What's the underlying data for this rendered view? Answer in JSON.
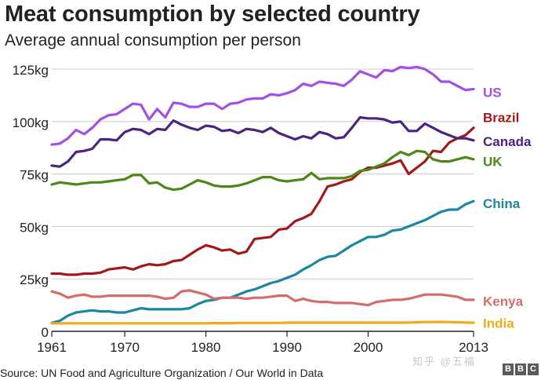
{
  "header": {
    "title": "Meat consumption by selected country",
    "subtitle": "Average annual consumption per person"
  },
  "footer": {
    "source": "Source: UN Food and Agriculture Organization / Our World in Data",
    "watermark": "知乎 @五福",
    "bbc_letters": [
      "B",
      "B",
      "C"
    ]
  },
  "chart_data": {
    "type": "line",
    "title": "Meat consumption by selected country",
    "subtitle": "Average annual consumption per person",
    "xlabel": "",
    "ylabel": "",
    "xlim": [
      1961,
      2013
    ],
    "ylim": [
      0,
      125
    ],
    "x_ticks": [
      1961,
      1970,
      1980,
      1990,
      2000,
      2013
    ],
    "y_ticks": [
      0,
      25,
      50,
      75,
      100,
      125
    ],
    "y_tick_labels": [
      "0",
      "25kg",
      "50kg",
      "75kg",
      "100kg",
      "125kg"
    ],
    "grid": "horizontal",
    "legend": "direct labels at right",
    "x": [
      1961,
      1962,
      1963,
      1964,
      1965,
      1966,
      1967,
      1968,
      1969,
      1970,
      1971,
      1972,
      1973,
      1974,
      1975,
      1976,
      1977,
      1978,
      1979,
      1980,
      1981,
      1982,
      1983,
      1984,
      1985,
      1986,
      1987,
      1988,
      1989,
      1990,
      1991,
      1992,
      1993,
      1994,
      1995,
      1996,
      1997,
      1998,
      1999,
      2000,
      2001,
      2002,
      2003,
      2004,
      2005,
      2006,
      2007,
      2008,
      2009,
      2010,
      2011,
      2012,
      2013
    ],
    "series": [
      {
        "name": "US",
        "color": "#a24fe6",
        "values": [
          89,
          89.5,
          92,
          96,
          94,
          97,
          101,
          103,
          103.5,
          106,
          108.5,
          108,
          101,
          106,
          102,
          109,
          108.5,
          107,
          107,
          108.5,
          108.5,
          106,
          108.5,
          109,
          110.5,
          111,
          111,
          113,
          112.5,
          113.5,
          115,
          118,
          117,
          119,
          118.5,
          118,
          117,
          120,
          124,
          122.5,
          121,
          124.5,
          124,
          126,
          125.5,
          126,
          125,
          122.5,
          119,
          119,
          117,
          115,
          115.5
        ]
      },
      {
        "name": "Brazil",
        "color": "#a51818",
        "values": [
          27.5,
          27.5,
          27,
          27,
          27.5,
          27.5,
          28,
          29.5,
          30,
          30.5,
          29.5,
          31,
          32,
          31.5,
          32,
          33.5,
          34,
          36.5,
          39,
          41,
          40,
          38.5,
          39,
          37,
          38,
          44,
          44.5,
          45,
          48.5,
          49,
          52.5,
          54,
          56,
          62,
          69,
          70,
          71.5,
          72.5,
          76,
          78,
          78,
          79,
          80,
          81.5,
          75,
          78,
          81,
          86,
          85.5,
          90,
          92,
          93.5,
          97
        ]
      },
      {
        "name": "Canada",
        "color": "#4a2480",
        "values": [
          79,
          78.5,
          81,
          85.5,
          86,
          87,
          91.5,
          91.5,
          91,
          95,
          96.5,
          96,
          94,
          96.5,
          96,
          100.5,
          98.5,
          97,
          96,
          98,
          97.5,
          95.5,
          96,
          94.5,
          96.5,
          96,
          95,
          97,
          94.5,
          93,
          91.5,
          93,
          92,
          95,
          94,
          92,
          92.5,
          97,
          102,
          101.5,
          101.5,
          101,
          99.5,
          100,
          95.5,
          95.5,
          99,
          97,
          95,
          93.5,
          92,
          92,
          91
        ]
      },
      {
        "name": "UK",
        "color": "#4e8717",
        "values": [
          70,
          71,
          70.5,
          70,
          70.5,
          71,
          71,
          71.5,
          72,
          72.5,
          74.5,
          74.5,
          70.5,
          71,
          68.5,
          67.5,
          68,
          70,
          72,
          71,
          69.5,
          69,
          69,
          69.5,
          70.5,
          72,
          73.5,
          73.5,
          72,
          71.5,
          72,
          72.5,
          75.5,
          72.5,
          73,
          73,
          73,
          74,
          76.5,
          77,
          78.5,
          80,
          83,
          85.5,
          84,
          86,
          85.5,
          82,
          81,
          81,
          82,
          83,
          82
        ]
      },
      {
        "name": "China",
        "color": "#1d86a3",
        "values": [
          4,
          5,
          7.5,
          9,
          9.5,
          10,
          9.5,
          9.5,
          9,
          9,
          10,
          11,
          10.5,
          10.5,
          10.5,
          10.5,
          10.5,
          11,
          13,
          14.5,
          15,
          16,
          16,
          17.5,
          19,
          20,
          21.5,
          23,
          24,
          25.5,
          27,
          29.5,
          31.5,
          34,
          35.5,
          36,
          38.5,
          41,
          43,
          45,
          45,
          46,
          48,
          48.5,
          50,
          51.5,
          53,
          55,
          57,
          58,
          58,
          60.5,
          62
        ]
      },
      {
        "name": "Kenya",
        "color": "#d56c6c",
        "values": [
          19,
          18,
          16,
          17,
          17.5,
          16.5,
          16.5,
          17,
          17,
          17,
          17,
          17,
          17,
          16.5,
          15.5,
          16,
          19,
          19.5,
          18.5,
          17.5,
          15.5,
          16,
          16,
          16,
          15.5,
          16,
          16,
          16.5,
          17,
          17,
          14.5,
          15.5,
          14.5,
          14,
          14,
          13.5,
          13.5,
          13.5,
          13,
          12.5,
          14,
          14.5,
          15,
          15,
          15.5,
          16.5,
          17.5,
          17.5,
          17.5,
          17,
          16.5,
          15,
          15
        ]
      },
      {
        "name": "India",
        "color": "#f0aa1a",
        "values": [
          3.8,
          3.8,
          3.8,
          3.8,
          3.8,
          3.8,
          3.8,
          3.8,
          3.8,
          3.8,
          3.8,
          3.8,
          3.8,
          3.8,
          3.8,
          3.8,
          3.8,
          3.8,
          3.8,
          3.8,
          3.9,
          3.9,
          3.9,
          4,
          4,
          4,
          4,
          4,
          4,
          4.1,
          4.1,
          4.1,
          4.1,
          4.1,
          4.1,
          4.1,
          4.1,
          4.1,
          4.1,
          4.1,
          4.1,
          4.1,
          4.1,
          4.1,
          4.2,
          4.3,
          4.4,
          4.4,
          4.5,
          4.4,
          4.3,
          4.2,
          4.1
        ]
      }
    ]
  }
}
